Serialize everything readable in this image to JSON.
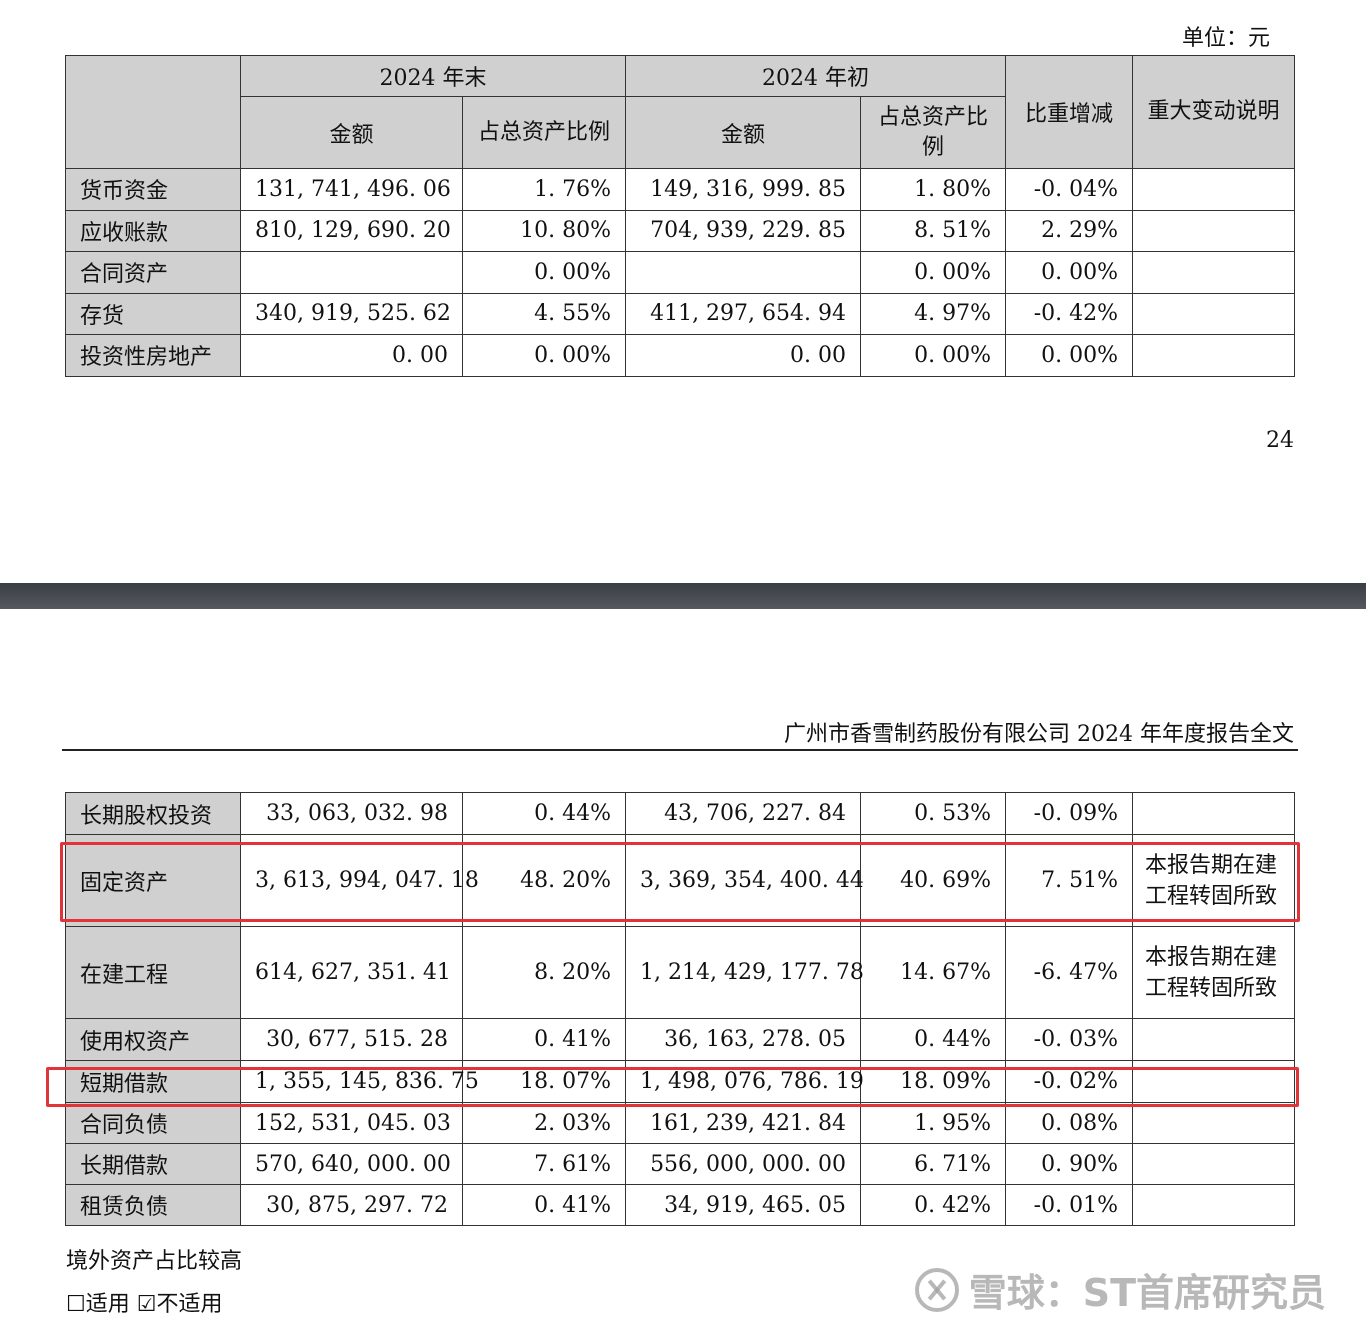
{
  "unit_label": "单位：元",
  "header": {
    "col_item": "",
    "group_end": "2024 年末",
    "group_begin": "2024 年初",
    "amount": "金额",
    "ratio": "占总资产比例",
    "change": "比重增减",
    "note": "重大变动说明"
  },
  "table_top": [
    {
      "name": "货币资金",
      "end_amt": "131, 741, 496. 06",
      "end_pct": "1. 76%",
      "begin_amt": "149, 316, 999. 85",
      "begin_pct": "1. 80%",
      "change": "-0. 04%",
      "note": ""
    },
    {
      "name": "应收账款",
      "end_amt": "810, 129, 690. 20",
      "end_pct": "10. 80%",
      "begin_amt": "704, 939, 229. 85",
      "begin_pct": "8. 51%",
      "change": "2. 29%",
      "note": ""
    },
    {
      "name": "合同资产",
      "end_amt": "",
      "end_pct": "0. 00%",
      "begin_amt": "",
      "begin_pct": "0. 00%",
      "change": "0. 00%",
      "note": ""
    },
    {
      "name": "存货",
      "end_amt": "340, 919, 525. 62",
      "end_pct": "4. 55%",
      "begin_amt": "411, 297, 654. 94",
      "begin_pct": "4. 97%",
      "change": "-0. 42%",
      "note": ""
    },
    {
      "name": "投资性房地产",
      "end_amt": "0. 00",
      "end_pct": "0. 00%",
      "begin_amt": "0. 00",
      "begin_pct": "0. 00%",
      "change": "0. 00%",
      "note": ""
    }
  ],
  "page_number": "24",
  "report_header": "广州市香雪制药股份有限公司 2024 年年度报告全文",
  "table_bottom": [
    {
      "name": "长期股权投资",
      "end_amt": "33, 063, 032. 98",
      "end_pct": "0. 44%",
      "begin_amt": "43, 706, 227. 84",
      "begin_pct": "0. 53%",
      "change": "-0. 09%",
      "note": ""
    },
    {
      "name": "固定资产",
      "end_amt": "3, 613, 994, 047. 18",
      "end_pct": "48. 20%",
      "begin_amt": "3, 369, 354, 400. 44",
      "begin_pct": "40. 69%",
      "change": "7. 51%",
      "note": "本报告期在建工程转固所致"
    },
    {
      "name": "在建工程",
      "end_amt": "614, 627, 351. 41",
      "end_pct": "8. 20%",
      "begin_amt": "1, 214, 429, 177. 78",
      "begin_pct": "14. 67%",
      "change": "-6. 47%",
      "note": "本报告期在建工程转固所致"
    },
    {
      "name": "使用权资产",
      "end_amt": "30, 677, 515. 28",
      "end_pct": "0. 41%",
      "begin_amt": "36, 163, 278. 05",
      "begin_pct": "0. 44%",
      "change": "-0. 03%",
      "note": ""
    },
    {
      "name": "短期借款",
      "end_amt": "1, 355, 145, 836. 75",
      "end_pct": "18. 07%",
      "begin_amt": "1, 498, 076, 786. 19",
      "begin_pct": "18. 09%",
      "change": "-0. 02%",
      "note": ""
    },
    {
      "name": "合同负债",
      "end_amt": "152, 531, 045. 03",
      "end_pct": "2. 03%",
      "begin_amt": "161, 239, 421. 84",
      "begin_pct": "1. 95%",
      "change": "0. 08%",
      "note": ""
    },
    {
      "name": "长期借款",
      "end_amt": "570, 640, 000. 00",
      "end_pct": "7. 61%",
      "begin_amt": "556, 000, 000. 00",
      "begin_pct": "6. 71%",
      "change": "0. 90%",
      "note": ""
    },
    {
      "name": "租赁负债",
      "end_amt": "30, 875, 297. 72",
      "end_pct": "0. 41%",
      "begin_amt": "34, 919, 465. 05",
      "begin_pct": "0. 42%",
      "change": "-0. 01%",
      "note": ""
    }
  ],
  "overseas_label": "境外资产占比较高",
  "applicable": "☐适用 ☑不适用",
  "watermark": "雪球：ST首席研究员",
  "highlight_color": "#e0333a"
}
